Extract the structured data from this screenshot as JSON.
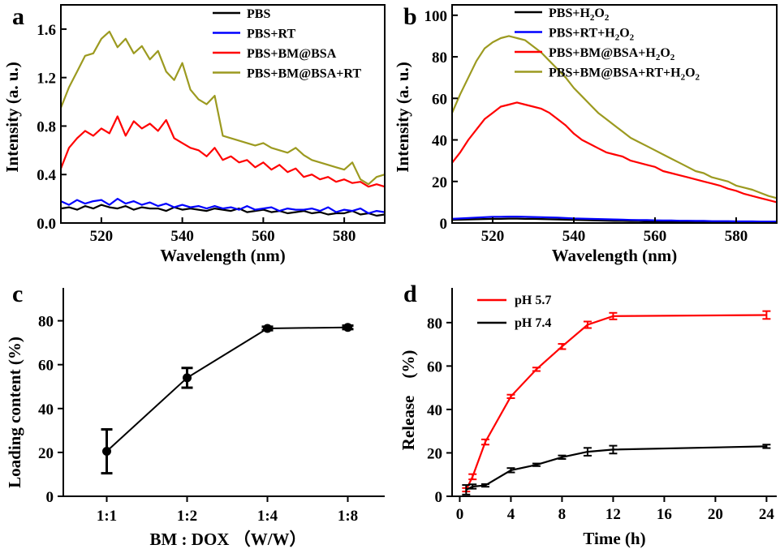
{
  "chart_data": [
    {
      "panel": "a",
      "type": "line",
      "xlabel": "Wavelength (nm)",
      "ylabel": "Intensity (a. u.)",
      "xlim": [
        510,
        590
      ],
      "ylim": [
        0,
        1.8
      ],
      "xticks": [
        520,
        540,
        560,
        580
      ],
      "yticks": [
        0.0,
        0.4,
        0.8,
        1.2,
        1.6
      ],
      "ytick_labels": [
        "0.0",
        "0.4",
        "0.8",
        "1.2",
        "1.6"
      ],
      "legend_position": "top-right",
      "x": [
        510,
        512,
        514,
        516,
        518,
        520,
        522,
        524,
        526,
        528,
        530,
        532,
        534,
        536,
        538,
        540,
        542,
        544,
        546,
        548,
        550,
        552,
        554,
        556,
        558,
        560,
        562,
        564,
        566,
        568,
        570,
        572,
        574,
        576,
        578,
        580,
        582,
        584,
        586,
        588,
        590
      ],
      "series": [
        {
          "name": "PBS",
          "color": "#000000",
          "values": [
            0.12,
            0.13,
            0.11,
            0.14,
            0.12,
            0.15,
            0.13,
            0.12,
            0.14,
            0.11,
            0.13,
            0.12,
            0.12,
            0.1,
            0.13,
            0.11,
            0.12,
            0.11,
            0.1,
            0.12,
            0.11,
            0.1,
            0.12,
            0.09,
            0.1,
            0.11,
            0.09,
            0.1,
            0.08,
            0.09,
            0.1,
            0.08,
            0.09,
            0.07,
            0.08,
            0.08,
            0.1,
            0.07,
            0.08,
            0.06,
            0.07
          ]
        },
        {
          "name": "PBS+RT",
          "color": "#0000ff",
          "values": [
            0.18,
            0.15,
            0.19,
            0.16,
            0.18,
            0.19,
            0.15,
            0.2,
            0.16,
            0.18,
            0.15,
            0.17,
            0.14,
            0.16,
            0.13,
            0.15,
            0.13,
            0.14,
            0.12,
            0.14,
            0.12,
            0.13,
            0.11,
            0.14,
            0.11,
            0.12,
            0.13,
            0.1,
            0.12,
            0.11,
            0.11,
            0.12,
            0.1,
            0.13,
            0.09,
            0.11,
            0.1,
            0.12,
            0.08,
            0.1,
            0.09
          ]
        },
        {
          "name": "PBS+BM@BSA",
          "color": "#ff0000",
          "values": [
            0.45,
            0.62,
            0.7,
            0.76,
            0.72,
            0.78,
            0.74,
            0.88,
            0.72,
            0.84,
            0.78,
            0.82,
            0.76,
            0.85,
            0.7,
            0.66,
            0.62,
            0.6,
            0.55,
            0.62,
            0.52,
            0.55,
            0.5,
            0.52,
            0.46,
            0.5,
            0.44,
            0.48,
            0.42,
            0.45,
            0.38,
            0.4,
            0.36,
            0.38,
            0.34,
            0.36,
            0.33,
            0.34,
            0.3,
            0.32,
            0.3
          ]
        },
        {
          "name": "PBS+BM@BSA+RT",
          "color": "#9c9a20",
          "values": [
            0.95,
            1.12,
            1.25,
            1.38,
            1.4,
            1.52,
            1.58,
            1.45,
            1.52,
            1.4,
            1.46,
            1.35,
            1.42,
            1.25,
            1.18,
            1.32,
            1.1,
            1.02,
            0.98,
            1.05,
            0.72,
            0.7,
            0.68,
            0.66,
            0.64,
            0.66,
            0.62,
            0.6,
            0.58,
            0.62,
            0.56,
            0.52,
            0.5,
            0.48,
            0.46,
            0.44,
            0.5,
            0.36,
            0.32,
            0.38,
            0.4
          ]
        }
      ]
    },
    {
      "panel": "b",
      "type": "line",
      "xlabel": "Wavelength (nm)",
      "ylabel": "Intensity (a. u.)",
      "xlim": [
        510,
        590
      ],
      "ylim": [
        0,
        105
      ],
      "xticks": [
        520,
        540,
        560,
        580
      ],
      "yticks": [
        0,
        20,
        40,
        60,
        80,
        100
      ],
      "legend_position": "top-right",
      "x": [
        510,
        512,
        514,
        516,
        518,
        520,
        522,
        524,
        526,
        528,
        530,
        532,
        534,
        536,
        538,
        540,
        542,
        544,
        546,
        548,
        550,
        552,
        554,
        556,
        558,
        560,
        562,
        564,
        566,
        568,
        570,
        572,
        574,
        576,
        578,
        580,
        582,
        584,
        586,
        588,
        590
      ],
      "series": [
        {
          "name_parts": [
            "PBS+H",
            "2",
            "O",
            "2"
          ],
          "color": "#000000",
          "values": [
            1.5,
            1.6,
            1.7,
            1.8,
            1.9,
            2.0,
            2.0,
            2.1,
            2.1,
            2.0,
            2.0,
            1.9,
            1.8,
            1.7,
            1.6,
            1.5,
            1.4,
            1.3,
            1.2,
            1.1,
            1.0,
            1.0,
            0.9,
            0.9,
            0.8,
            0.8,
            0.7,
            0.7,
            0.6,
            0.6,
            0.6,
            0.5,
            0.5,
            0.5,
            0.4,
            0.4,
            0.4,
            0.4,
            0.3,
            0.3,
            0.3
          ]
        },
        {
          "name_parts": [
            "PBS+RT+H",
            "2",
            "O",
            "2"
          ],
          "color": "#0000ff",
          "values": [
            2.0,
            2.2,
            2.4,
            2.6,
            2.8,
            3.0,
            3.0,
            3.1,
            3.1,
            3.0,
            2.9,
            2.8,
            2.7,
            2.6,
            2.4,
            2.2,
            2.1,
            2.0,
            1.9,
            1.8,
            1.7,
            1.6,
            1.5,
            1.4,
            1.4,
            1.3,
            1.2,
            1.2,
            1.1,
            1.1,
            1.0,
            1.0,
            0.9,
            0.9,
            0.9,
            0.8,
            0.8,
            0.8,
            0.7,
            0.7,
            0.7
          ]
        },
        {
          "name_parts": [
            "PBS+BM@BSA+H",
            "2",
            "O",
            "2"
          ],
          "color": "#ff0000",
          "values": [
            29,
            34,
            40,
            45,
            50,
            53,
            56,
            57,
            58,
            57,
            56,
            55,
            53,
            50,
            47,
            43,
            40,
            38,
            36,
            34,
            33,
            32,
            30,
            29,
            28,
            27,
            25,
            24,
            23,
            22,
            21,
            20,
            19,
            18,
            16.5,
            15.5,
            14,
            13,
            12,
            11,
            10
          ]
        },
        {
          "name_parts": [
            "PBS+BM@BSA+RT+H",
            "2",
            "O",
            "2"
          ],
          "color": "#9c9a20",
          "values": [
            53,
            62,
            70,
            78,
            84,
            87,
            89,
            90,
            89,
            88,
            85,
            82,
            78,
            74,
            70,
            65,
            61,
            57,
            53,
            50,
            47,
            44,
            41,
            39,
            37,
            35,
            33,
            31,
            29,
            27,
            25,
            24,
            22,
            21,
            20,
            18,
            17,
            16,
            14.5,
            13,
            12
          ]
        }
      ]
    },
    {
      "panel": "c",
      "type": "line",
      "xlabel": "BM : DOX （W/W）",
      "ylabel": "Loading content (%)",
      "categories": [
        "1:1",
        "1:2",
        "1:4",
        "1:8"
      ],
      "ylim": [
        0,
        95
      ],
      "yticks": [
        0,
        20,
        40,
        60,
        80
      ],
      "color": "#000000",
      "values": [
        20.5,
        54,
        76.5,
        77
      ],
      "errors": [
        10,
        4.5,
        0.8,
        0.8
      ]
    },
    {
      "panel": "d",
      "type": "line",
      "xlabel": "Time (h)",
      "ylabel": "Release　(%)",
      "xlim": [
        -0.6,
        24.8
      ],
      "ylim": [
        0,
        96
      ],
      "xticks": [
        0,
        4,
        8,
        12,
        16,
        20,
        24
      ],
      "yticks": [
        0,
        20,
        40,
        60,
        80
      ],
      "legend_position": "top-left",
      "series": [
        {
          "name": "pH 5.7",
          "color": "#ff0000",
          "x": [
            0.5,
            1,
            2,
            4,
            6,
            8,
            10,
            12,
            24
          ],
          "values": [
            3,
            9,
            25,
            46,
            58.5,
            69,
            79,
            83,
            83.5
          ],
          "errors": [
            0.8,
            1.2,
            1.2,
            0.8,
            0.8,
            1.2,
            1.5,
            1.5,
            1.8
          ]
        },
        {
          "name": "pH 7.4",
          "color": "#000000",
          "x": [
            0.5,
            1,
            2,
            4,
            6,
            8,
            10,
            12,
            24
          ],
          "values": [
            3,
            4.5,
            5,
            12,
            14.5,
            18,
            20.5,
            21.5,
            23
          ],
          "errors": [
            2.2,
            1,
            0.6,
            1,
            0.6,
            0.8,
            1.8,
            1.8,
            0.8
          ]
        }
      ]
    }
  ]
}
